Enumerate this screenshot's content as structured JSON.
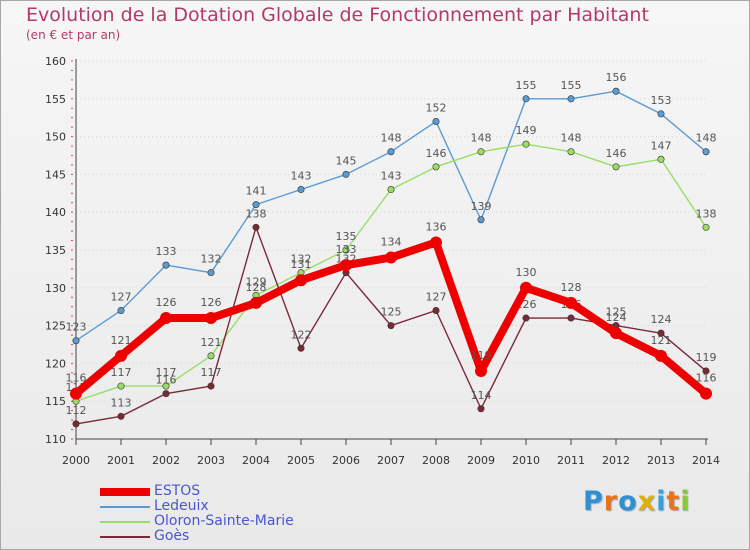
{
  "title": "Evolution de la Dotation Globale de Fonctionnement par Habitant",
  "subtitle": "(en € et par an)",
  "logo_text": "Proxiti",
  "colors": {
    "title": "#b23a6a",
    "axis_text": "#333333",
    "legend_text": "#4a56d0",
    "grid": "#d6d6d6"
  },
  "chart_data": {
    "type": "line",
    "title": "Evolution de la Dotation Globale de Fonctionnement par Habitant",
    "subtitle": "(en € et par an)",
    "x": [
      2000,
      2001,
      2002,
      2003,
      2004,
      2005,
      2006,
      2007,
      2008,
      2009,
      2010,
      2011,
      2012,
      2013,
      2014
    ],
    "ylim": [
      110,
      160
    ],
    "yticks": [
      110,
      115,
      120,
      125,
      130,
      135,
      140,
      145,
      150,
      155,
      160
    ],
    "grid": "horizontal dotted",
    "legend_position": "bottom-left",
    "series": [
      {
        "name": "ESTOS",
        "color": "#ee0000",
        "values": [
          116,
          121,
          126,
          126,
          128,
          131,
          133,
          134,
          136,
          119,
          130,
          128,
          124,
          121,
          116
        ]
      },
      {
        "name": "Ledeuix",
        "color": "#5a9bd4",
        "values": [
          123,
          127,
          133,
          132,
          141,
          143,
          145,
          148,
          152,
          139,
          155,
          155,
          156,
          153,
          148
        ]
      },
      {
        "name": "Oloron-Sainte-Marie",
        "color": "#99dd66",
        "values": [
          115,
          117,
          117,
          121,
          129,
          132,
          135,
          143,
          146,
          148,
          149,
          148,
          146,
          147,
          138
        ]
      },
      {
        "name": "Goès",
        "color": "#7a2a36",
        "values": [
          112,
          113,
          116,
          117,
          138,
          122,
          132,
          125,
          127,
          114,
          126,
          126,
          125,
          124,
          119
        ]
      }
    ]
  }
}
